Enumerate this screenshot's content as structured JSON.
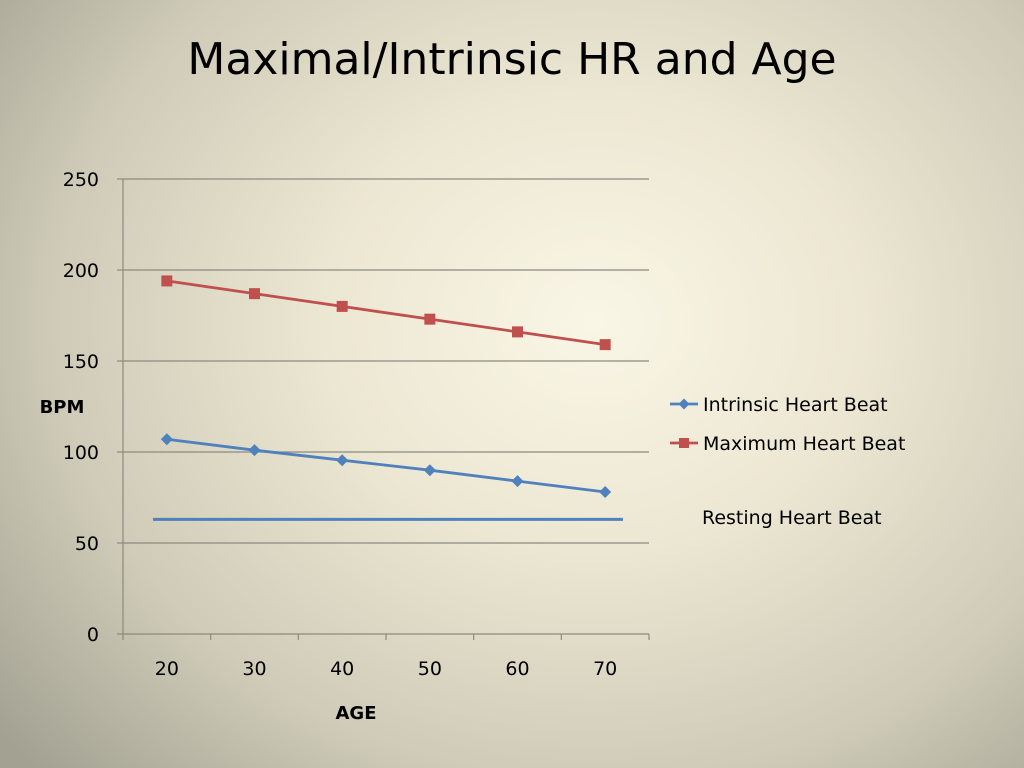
{
  "slide": {
    "title": "Maximal/Intrinsic HR and Age"
  },
  "chart_data": {
    "type": "line",
    "title": "",
    "xlabel": "AGE",
    "ylabel": "BPM",
    "categories": [
      "20",
      "30",
      "40",
      "50",
      "60",
      "70"
    ],
    "ylim": [
      0,
      250
    ],
    "yticks": [
      0,
      50,
      100,
      150,
      200,
      250
    ],
    "grid": true,
    "legend_position": "right",
    "series": [
      {
        "name": "Intrinsic Heart Beat",
        "values": [
          107,
          101,
          95.5,
          90,
          84,
          78
        ],
        "color": "#4f81bd",
        "marker": "diamond"
      },
      {
        "name": "Maximum Heart Beat",
        "values": [
          194,
          187,
          180,
          173,
          166,
          159
        ],
        "color": "#c0504d",
        "marker": "square"
      }
    ],
    "reference_line": {
      "name": "Resting Heart Beat",
      "value": 63,
      "color": "#4f81bd"
    }
  }
}
